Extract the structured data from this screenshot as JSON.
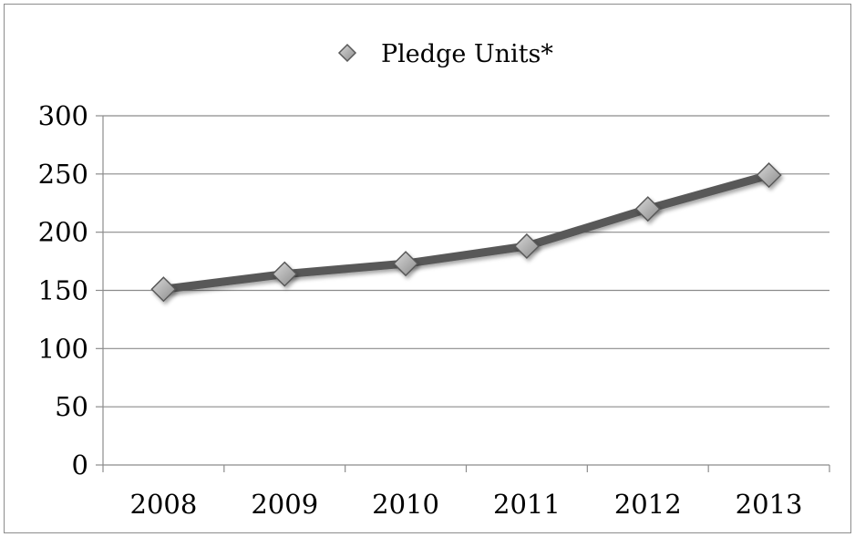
{
  "chart_data": {
    "type": "line",
    "categories": [
      "2008",
      "2009",
      "2010",
      "2011",
      "2012",
      "2013"
    ],
    "series": [
      {
        "name": "Pledge Units*",
        "values": [
          151,
          164,
          173,
          188,
          220,
          249
        ]
      }
    ],
    "ylim": [
      0,
      300
    ],
    "yticks": [
      0,
      50,
      100,
      150,
      200,
      250,
      300
    ],
    "ytick_labels": [
      "0",
      "50",
      "100",
      "150",
      "200",
      "250",
      "300"
    ],
    "grid": true,
    "legend": "top-center",
    "colors": {
      "line": "#595959",
      "marker_fill": "#a6a6a6",
      "marker_stroke": "#595959",
      "grid": "#8c8c8c",
      "axis": "#8c8c8c"
    }
  }
}
